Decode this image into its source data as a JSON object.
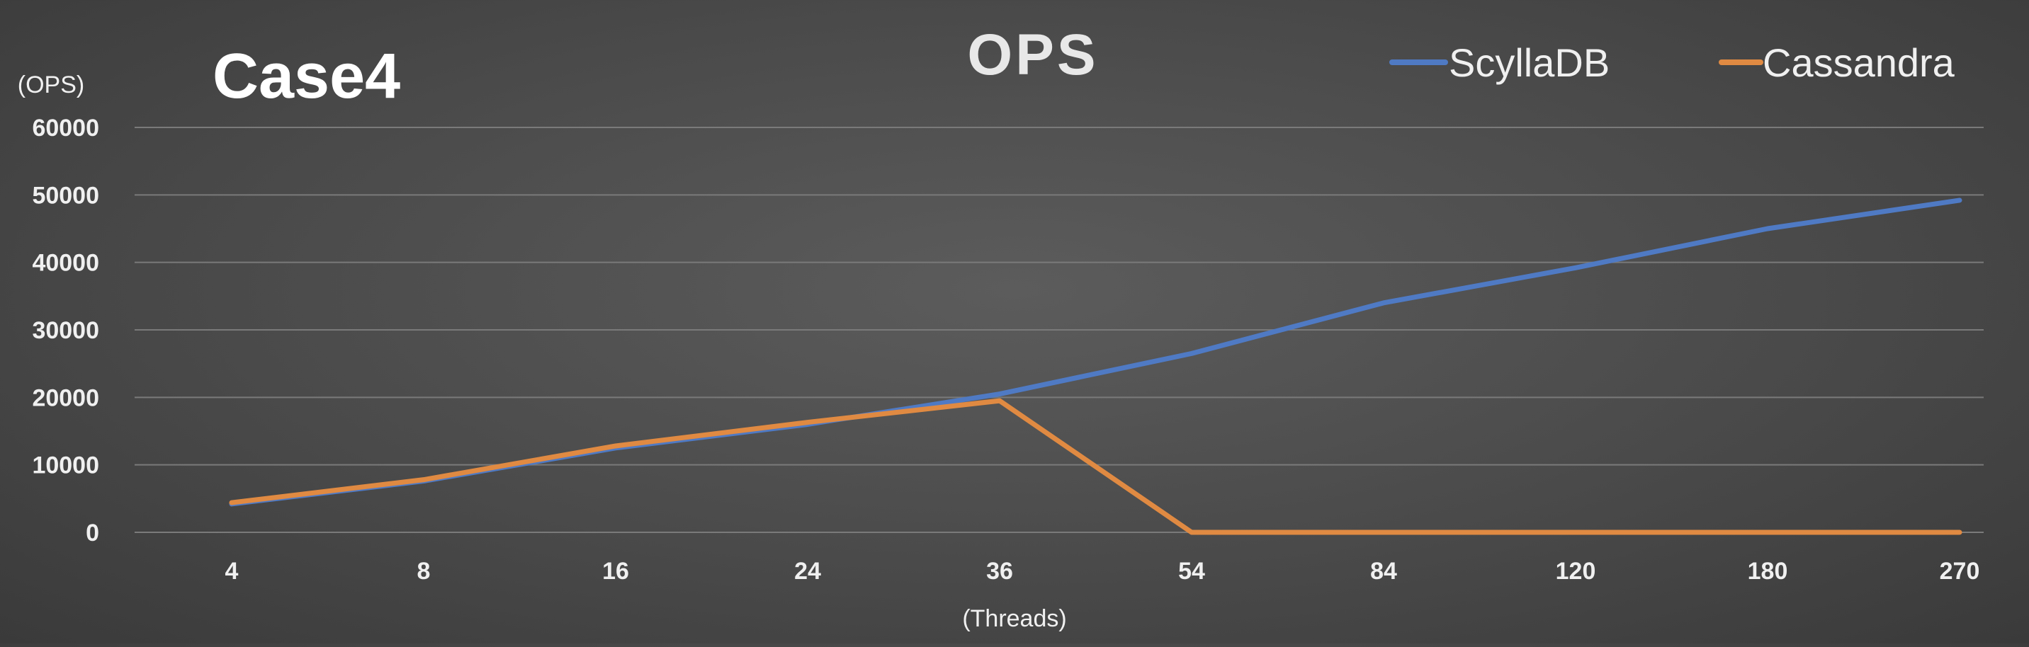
{
  "chart_data": {
    "type": "line",
    "title": "OPS",
    "case_label": "Case4",
    "ylabel": "(OPS)",
    "xlabel": "(Threads)",
    "categories": [
      "4",
      "8",
      "16",
      "24",
      "36",
      "54",
      "84",
      "120",
      "180",
      "270"
    ],
    "ylim": [
      0,
      60000
    ],
    "yticks": [
      "0",
      "10000",
      "20000",
      "30000",
      "40000",
      "50000",
      "60000"
    ],
    "grid": true,
    "legend_position": "top-right",
    "series": [
      {
        "name": "ScyllaDB",
        "color": "#4f7ac4",
        "values": [
          4200,
          7600,
          12500,
          16000,
          20500,
          26500,
          34000,
          39200,
          45000,
          49200
        ]
      },
      {
        "name": "Cassandra",
        "color": "#e08a42",
        "values": [
          4400,
          7800,
          12800,
          16300,
          19500,
          0,
          0,
          0,
          0,
          0
        ]
      }
    ]
  }
}
